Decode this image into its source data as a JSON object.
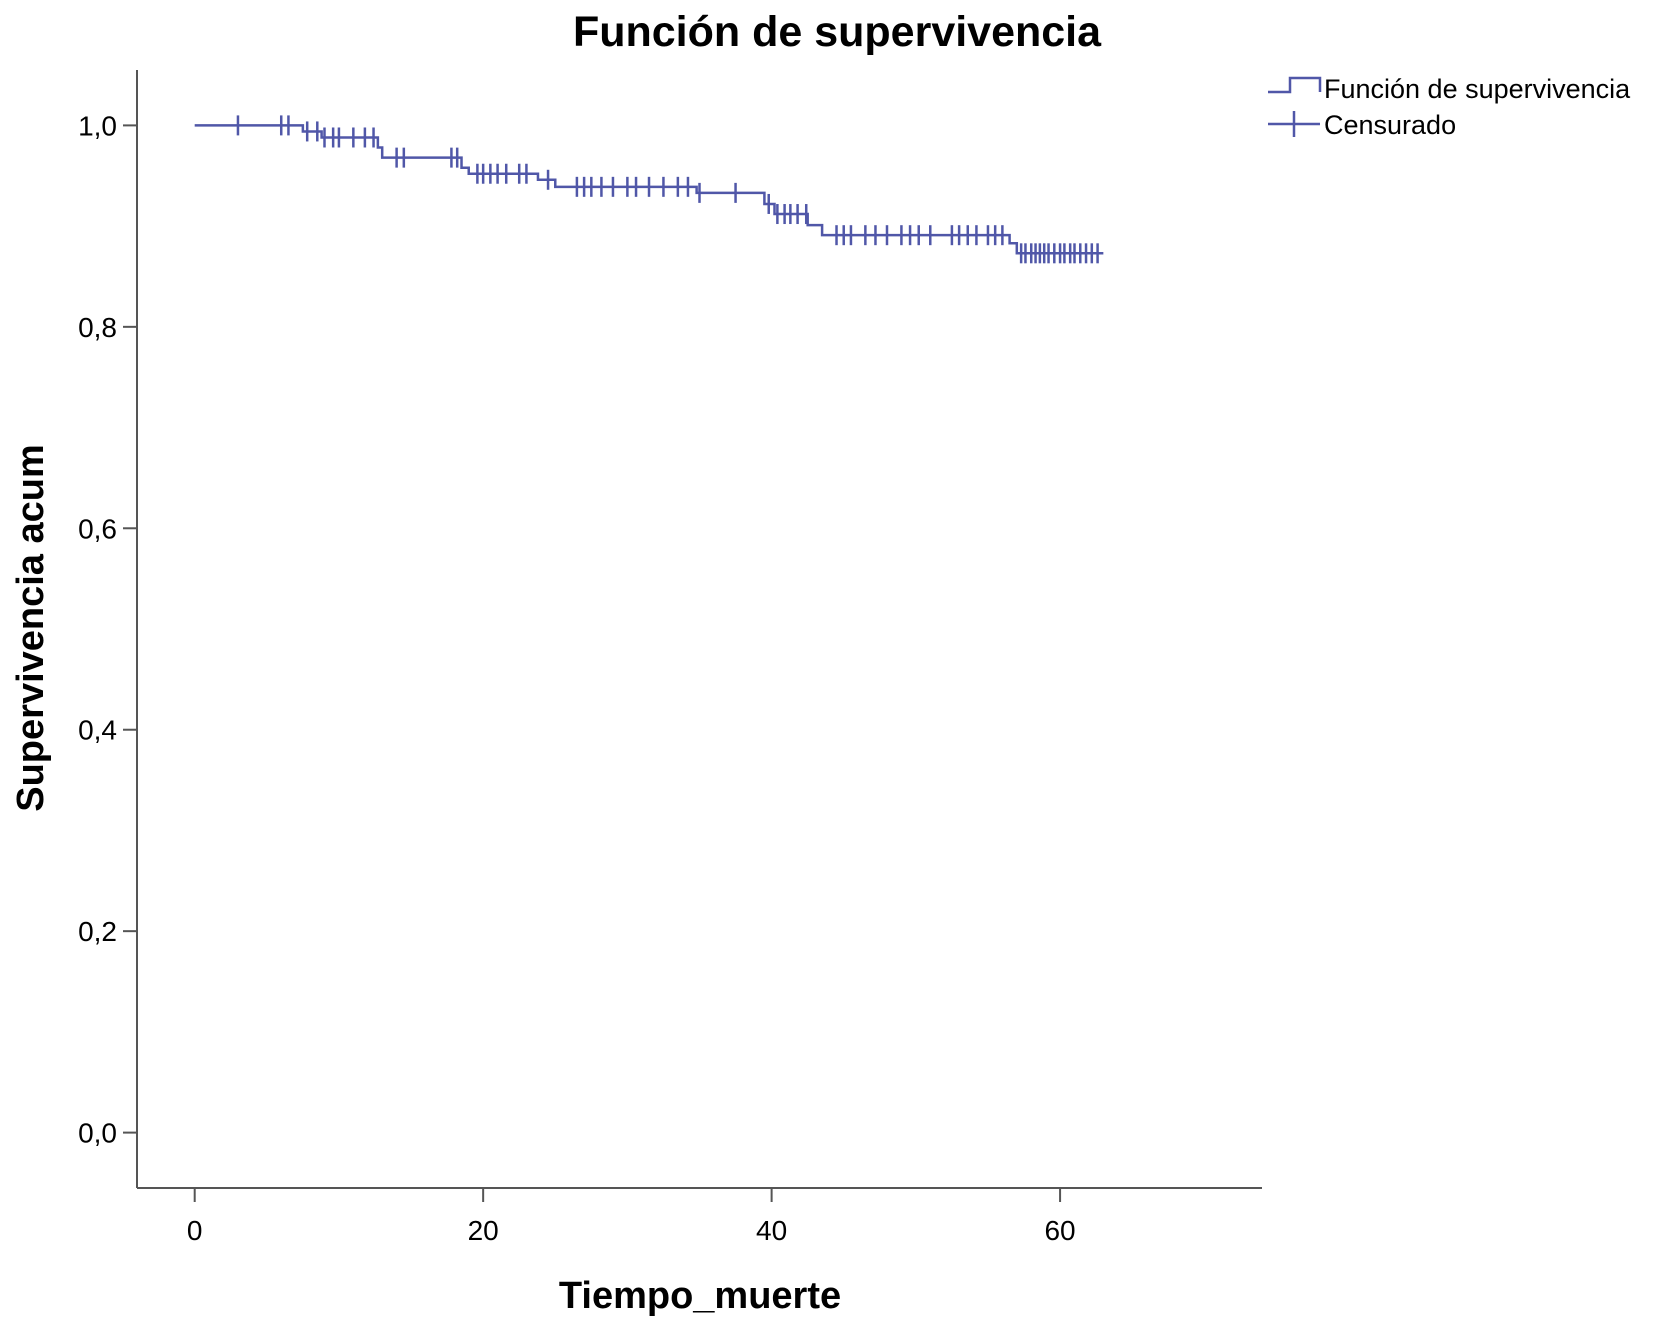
{
  "chart_data": {
    "type": "line",
    "subtype": "kaplan-meier step",
    "title": "Función de supervivencia",
    "xlabel": "Tiempo_muerte",
    "ylabel": "Supervivencia acum",
    "xlim": [
      -4,
      74
    ],
    "ylim": [
      -0.055,
      1.055
    ],
    "x_ticks": [
      0,
      20,
      40,
      60
    ],
    "x_tick_labels": [
      "0",
      "20",
      "40",
      "60"
    ],
    "y_ticks": [
      0.0,
      0.2,
      0.4,
      0.6,
      0.8,
      1.0
    ],
    "y_tick_labels": [
      "0,0",
      "0,2",
      "0,4",
      "0,6",
      "0,8",
      "1,0"
    ],
    "grid": false,
    "legend_position": "top-right",
    "series": [
      {
        "name": "Función de supervivencia",
        "kind": "step",
        "color": "#5057a8",
        "points": [
          [
            0,
            1.0
          ],
          [
            7.5,
            0.994
          ],
          [
            8.8,
            0.988
          ],
          [
            12.7,
            0.978
          ],
          [
            13.0,
            0.968
          ],
          [
            18.5,
            0.958
          ],
          [
            19.0,
            0.952
          ],
          [
            23.8,
            0.946
          ],
          [
            25.0,
            0.939
          ],
          [
            34.8,
            0.933
          ],
          [
            39.5,
            0.922
          ],
          [
            40.2,
            0.912
          ],
          [
            42.5,
            0.901
          ],
          [
            43.5,
            0.891
          ],
          [
            56.5,
            0.883
          ],
          [
            57.0,
            0.873
          ],
          [
            63.0,
            0.873
          ]
        ]
      },
      {
        "name": "Censurado",
        "kind": "censor-marks",
        "color": "#5057a8",
        "x": [
          3.0,
          6.0,
          6.5,
          7.8,
          8.5,
          9.0,
          9.6,
          10.0,
          11.0,
          11.8,
          12.4,
          14.0,
          14.5,
          17.8,
          18.2,
          19.6,
          20.0,
          20.5,
          21.0,
          21.6,
          22.5,
          23.0,
          24.5,
          26.5,
          27.0,
          27.5,
          28.2,
          29.0,
          30.0,
          30.6,
          31.5,
          32.5,
          33.5,
          34.2,
          35.0,
          37.5,
          39.8,
          40.4,
          40.9,
          41.3,
          41.8,
          42.4,
          44.5,
          45.0,
          45.5,
          46.5,
          47.2,
          48.0,
          49.0,
          49.6,
          50.2,
          51.0,
          52.5,
          53.0,
          53.6,
          54.2,
          55.0,
          55.5,
          56.0,
          57.3,
          57.6,
          58.0,
          58.3,
          58.6,
          58.9,
          59.2,
          59.6,
          60.0,
          60.3,
          60.7,
          61.0,
          61.4,
          61.8,
          62.2,
          62.6
        ]
      }
    ]
  }
}
